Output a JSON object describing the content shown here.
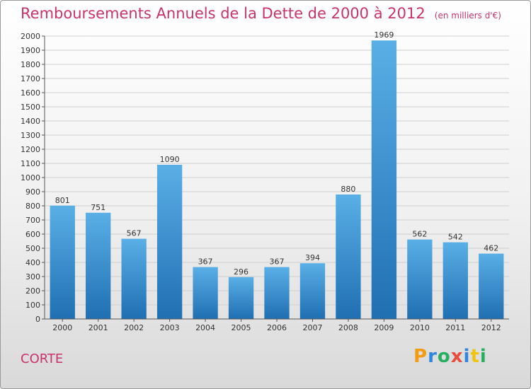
{
  "header": {
    "title": "Remboursements Annuels de la Dette de 2000 à 2012",
    "unit": "(en milliers d'€)"
  },
  "footer": {
    "commune": "CORTE",
    "logo_text": "Proxiti",
    "logo_colors": [
      "#f39c12",
      "#2e86de",
      "#27ae60",
      "#e74c3c",
      "#2e86de",
      "#f1c40f",
      "#27ae60"
    ]
  },
  "colors": {
    "title": "#c8336c",
    "bar_top": "#5aafe6",
    "bar_bottom": "#1f6fb2",
    "grid": "#cfcfcf",
    "axis_text": "#333333"
  },
  "chart_data": {
    "type": "bar",
    "title": "Remboursements Annuels de la Dette de 2000 à 2012",
    "subtitle": "(en milliers d'€)",
    "xlabel": "",
    "ylabel": "",
    "categories": [
      "2000",
      "2001",
      "2002",
      "2003",
      "2004",
      "2005",
      "2006",
      "2007",
      "2008",
      "2009",
      "2010",
      "2011",
      "2012"
    ],
    "values": [
      801,
      751,
      567,
      1090,
      367,
      296,
      367,
      394,
      880,
      1969,
      562,
      542,
      462
    ],
    "ylim": [
      0,
      2000
    ],
    "ytick_step": 100,
    "grid": true,
    "legend": "none"
  }
}
